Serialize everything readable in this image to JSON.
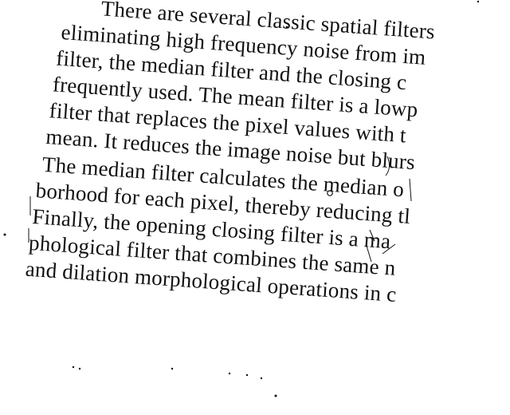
{
  "document": {
    "lines": [
      "There are several classic spatial filters",
      "eliminating high frequency noise from im",
      "filter, the median filter and the closing c",
      "frequently used. The mean filter is a lowp",
      "filter that replaces the pixel values with t",
      "mean. It reduces the image noise but blurs",
      "The median filter calculates the median o",
      "borhood for each pixel, thereby reducing tl",
      "Finally, the opening closing filter is a ma",
      "phological filter that combines the same n",
      "and dilation morphological operations in c"
    ]
  }
}
